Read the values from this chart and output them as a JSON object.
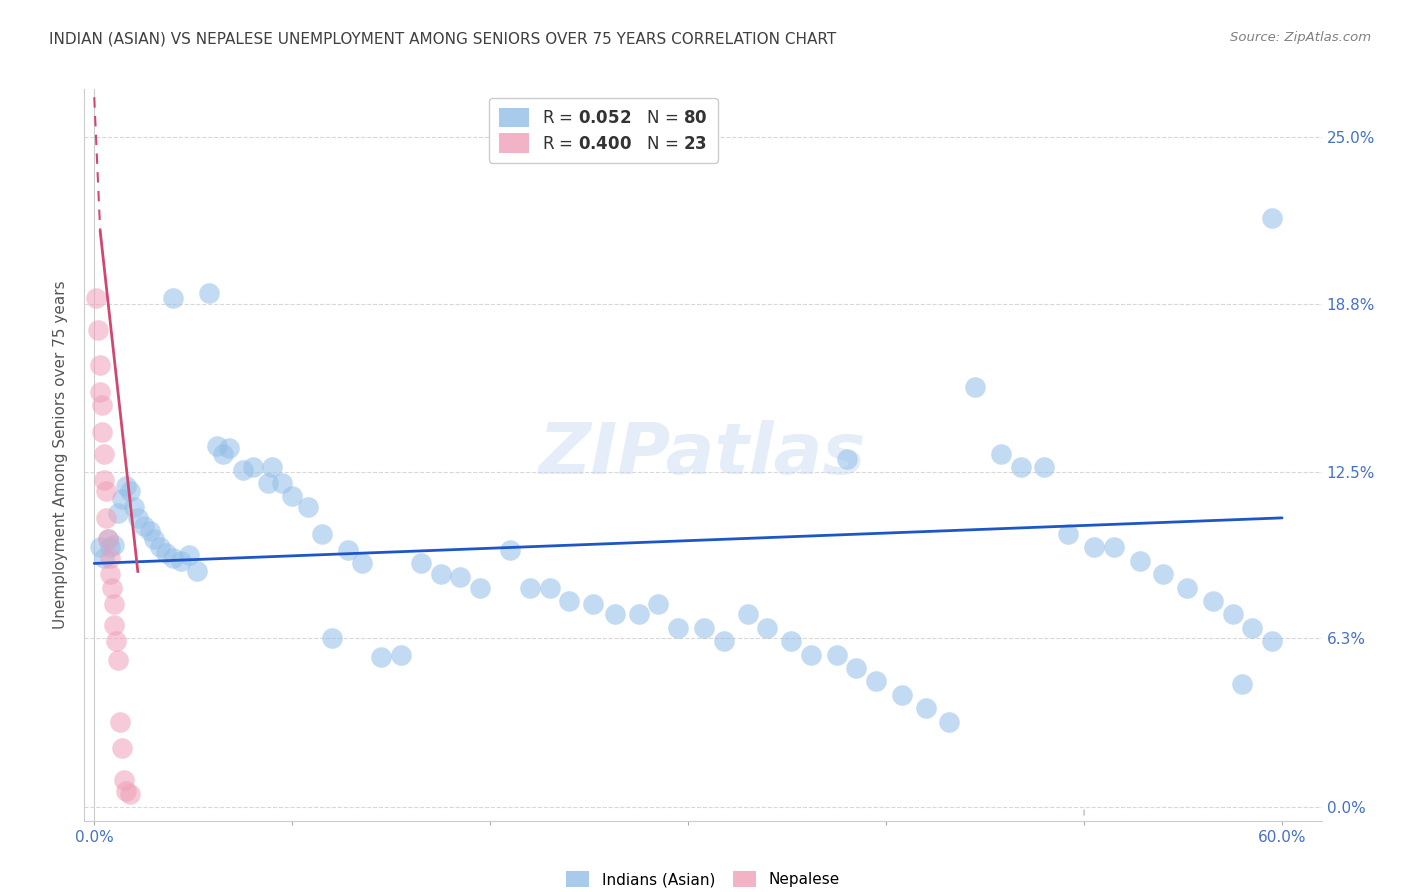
{
  "title": "INDIAN (ASIAN) VS NEPALESE UNEMPLOYMENT AMONG SENIORS OVER 75 YEARS CORRELATION CHART",
  "source": "Source: ZipAtlas.com",
  "ylabel": "Unemployment Among Seniors over 75 years",
  "ylabel_vals": [
    0.0,
    0.063,
    0.125,
    0.188,
    0.25
  ],
  "ylabel_labels": [
    "0.0%",
    "6.3%",
    "12.5%",
    "18.8%",
    "25.0%"
  ],
  "xtick_positions": [
    0.0,
    0.1,
    0.2,
    0.3,
    0.4,
    0.5,
    0.6
  ],
  "xtick_major_labels": {
    "0.0": "0.0%",
    "0.6": "60.0%"
  },
  "xlim": [
    -0.005,
    0.62
  ],
  "ylim": [
    -0.005,
    0.268
  ],
  "watermark": "ZIPatlas",
  "blue_color": "#92BEE8",
  "pink_color": "#F0A0B8",
  "blue_trend_color": "#1E56C8",
  "pink_trend_color": "#D04870",
  "axis_label_color": "#4472C4",
  "title_color": "#404040",
  "source_color": "#808080",
  "grid_color": "#D8D8D8",
  "background_color": "#FFFFFF",
  "blue_line_x0": 0.0,
  "blue_line_x1": 0.6,
  "blue_line_y0": 0.091,
  "blue_line_y1": 0.108,
  "pink_line_solid_x0": 0.003,
  "pink_line_solid_x1": 0.022,
  "pink_line_solid_y0": 0.215,
  "pink_line_solid_y1": 0.088,
  "pink_line_dash_x0": 0.0,
  "pink_line_dash_x1": 0.003,
  "pink_line_dash_y0": 0.265,
  "pink_line_dash_y1": 0.215,
  "blue_x": [
    0.003,
    0.005,
    0.007,
    0.008,
    0.01,
    0.012,
    0.014,
    0.016,
    0.018,
    0.02,
    0.022,
    0.025,
    0.028,
    0.03,
    0.033,
    0.036,
    0.04,
    0.044,
    0.048,
    0.052,
    0.058,
    0.062,
    0.068,
    0.075,
    0.08,
    0.088,
    0.095,
    0.1,
    0.108,
    0.115,
    0.12,
    0.128,
    0.135,
    0.145,
    0.155,
    0.165,
    0.175,
    0.185,
    0.195,
    0.21,
    0.22,
    0.23,
    0.24,
    0.252,
    0.263,
    0.275,
    0.285,
    0.295,
    0.308,
    0.318,
    0.33,
    0.34,
    0.352,
    0.362,
    0.375,
    0.385,
    0.395,
    0.408,
    0.42,
    0.432,
    0.445,
    0.458,
    0.468,
    0.48,
    0.492,
    0.505,
    0.515,
    0.528,
    0.54,
    0.552,
    0.565,
    0.575,
    0.585,
    0.595,
    0.04,
    0.065,
    0.09,
    0.38,
    0.58,
    0.595
  ],
  "blue_y": [
    0.097,
    0.093,
    0.1,
    0.097,
    0.098,
    0.11,
    0.115,
    0.12,
    0.118,
    0.112,
    0.108,
    0.105,
    0.103,
    0.1,
    0.097,
    0.095,
    0.093,
    0.092,
    0.094,
    0.088,
    0.192,
    0.135,
    0.134,
    0.126,
    0.127,
    0.121,
    0.121,
    0.116,
    0.112,
    0.102,
    0.063,
    0.096,
    0.091,
    0.056,
    0.057,
    0.091,
    0.087,
    0.086,
    0.082,
    0.096,
    0.082,
    0.082,
    0.077,
    0.076,
    0.072,
    0.072,
    0.076,
    0.067,
    0.067,
    0.062,
    0.072,
    0.067,
    0.062,
    0.057,
    0.057,
    0.052,
    0.047,
    0.042,
    0.037,
    0.032,
    0.157,
    0.132,
    0.127,
    0.127,
    0.102,
    0.097,
    0.097,
    0.092,
    0.087,
    0.082,
    0.077,
    0.072,
    0.067,
    0.062,
    0.19,
    0.132,
    0.127,
    0.13,
    0.046,
    0.22
  ],
  "pink_x": [
    0.001,
    0.002,
    0.003,
    0.003,
    0.004,
    0.004,
    0.005,
    0.005,
    0.006,
    0.006,
    0.007,
    0.008,
    0.008,
    0.009,
    0.01,
    0.01,
    0.011,
    0.012,
    0.013,
    0.014,
    0.015,
    0.016,
    0.018
  ],
  "pink_y": [
    0.19,
    0.178,
    0.165,
    0.155,
    0.15,
    0.14,
    0.132,
    0.122,
    0.118,
    0.108,
    0.1,
    0.093,
    0.087,
    0.082,
    0.076,
    0.068,
    0.062,
    0.055,
    0.032,
    0.022,
    0.01,
    0.006,
    0.005
  ]
}
